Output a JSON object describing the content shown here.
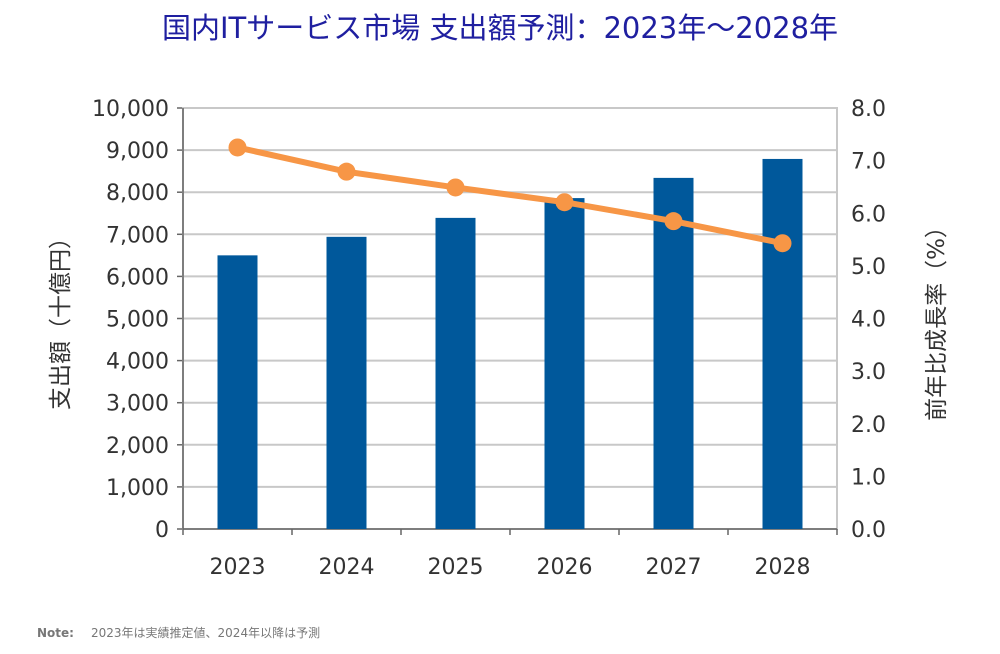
{
  "chart_data": {
    "type": "bar",
    "title": "国内ITサービス市場 支出額予測：2023年～2028年",
    "categories": [
      "2023",
      "2024",
      "2025",
      "2026",
      "2027",
      "2028"
    ],
    "series": [
      {
        "name": "支出額（十億円）",
        "type": "bar",
        "axis": "left",
        "values": [
          6500,
          6940,
          7390,
          7860,
          8340,
          8790
        ],
        "color": "#00589b"
      },
      {
        "name": "前年比成長率（%）",
        "type": "line",
        "axis": "right",
        "values": [
          7.25,
          6.79,
          6.49,
          6.21,
          5.85,
          5.43
        ],
        "color": "#f79646"
      }
    ],
    "ylabel": "支出額（十億円）",
    "y2label": "前年比成長率（%）",
    "ylim": [
      0,
      10000
    ],
    "y2lim": [
      0,
      8
    ],
    "yticks": [
      "0",
      "1,000",
      "2,000",
      "3,000",
      "4,000",
      "5,000",
      "6,000",
      "7,000",
      "8,000",
      "9,000",
      "10,000"
    ],
    "y2ticks": [
      "0.0",
      "1.0",
      "2.0",
      "3.0",
      "4.0",
      "5.0",
      "6.0",
      "7.0",
      "8.0"
    ],
    "grid": true,
    "title_color": "#1f1fa0"
  },
  "note": {
    "label": "Note:",
    "text": "2023年は実績推定値、2024年以降は予測"
  }
}
